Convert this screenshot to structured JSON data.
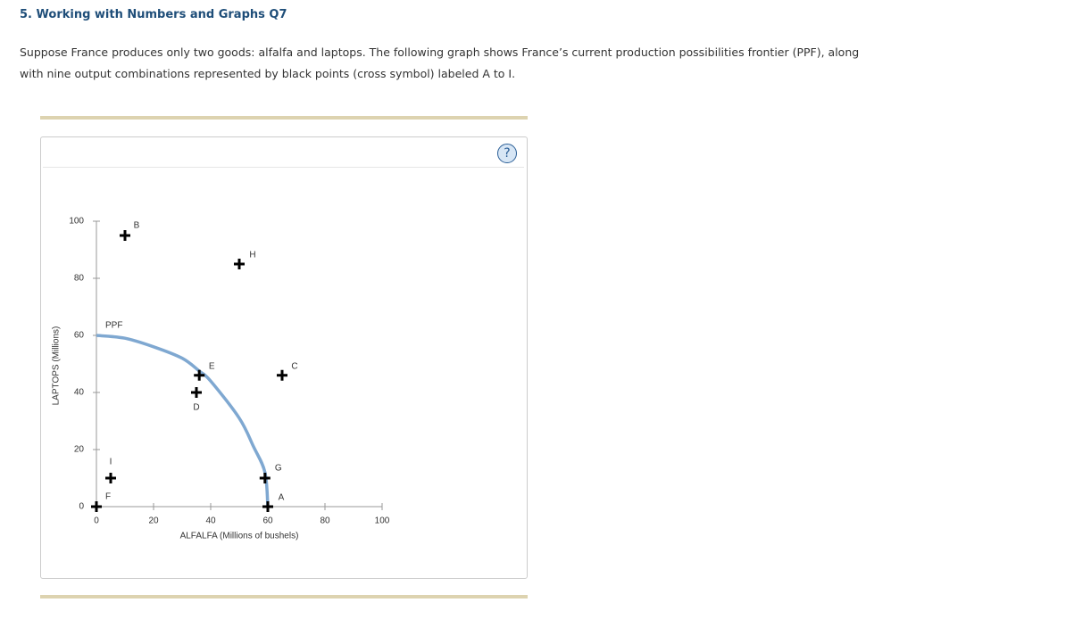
{
  "header": {
    "title": "5. Working with Numbers and Graphs Q7"
  },
  "paragraph": [
    "Suppose France produces only two goods: alfalfa and laptops. The following graph shows France’s current production possibilities frontier (PPF), along",
    "with nine output combinations represented by black points (cross symbol) labeled A to I."
  ],
  "help_icon": "?",
  "chart_data": {
    "type": "scatter",
    "x_label": "ALFALFA (Millions of bushels)",
    "y_label": "LAPTOPS (Millions)",
    "xlim": [
      0,
      100
    ],
    "ylim": [
      0,
      100
    ],
    "xticks": [
      0,
      20,
      40,
      60,
      80,
      100
    ],
    "yticks": [
      0,
      20,
      40,
      60,
      80,
      100
    ],
    "points": {
      "color": "#000000",
      "labels": [
        "A",
        "B",
        "C",
        "D",
        "E",
        "F",
        "G",
        "H",
        "I"
      ],
      "x": [
        60,
        10,
        65,
        35,
        36,
        0,
        59,
        50,
        5
      ],
      "y": [
        0,
        95,
        46,
        40,
        46,
        0,
        10,
        85,
        10
      ]
    },
    "ppf": {
      "name": "PPF",
      "color": "#7fa8d1",
      "x": [
        0,
        10,
        20,
        30,
        36,
        40,
        50,
        55,
        59,
        60
      ],
      "y": [
        60,
        59,
        56,
        52,
        47.5,
        44,
        31,
        21,
        12,
        0
      ]
    }
  }
}
